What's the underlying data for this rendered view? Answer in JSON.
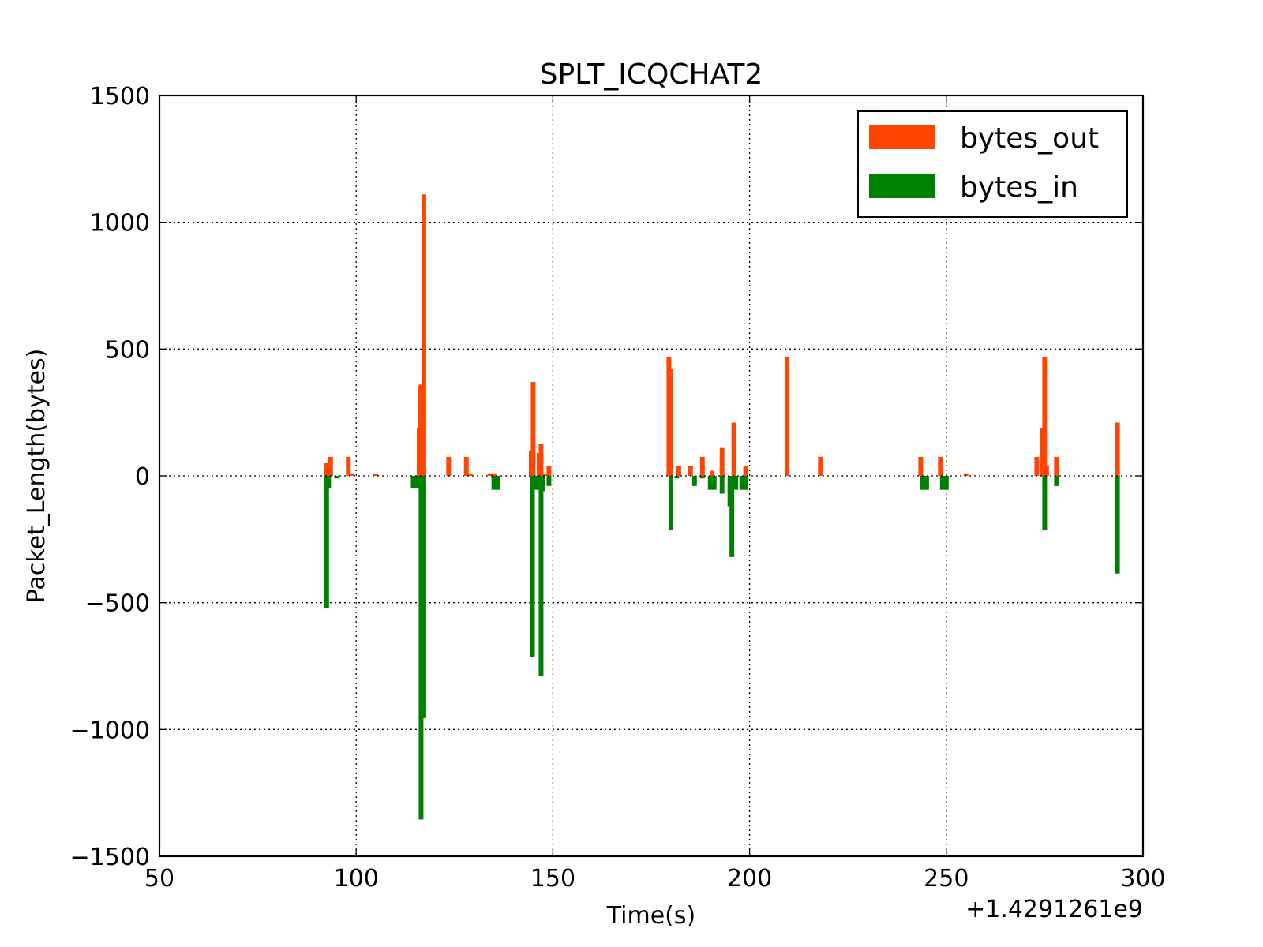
{
  "chart_data": {
    "type": "bar",
    "title": "SPLT_ICQCHAT2",
    "xlabel": "Time(s)",
    "ylabel": "Packet_Length(bytes)",
    "x_offset_label": "+1.4291261e9",
    "xlim": [
      50,
      300
    ],
    "ylim": [
      -1500,
      1500
    ],
    "x_ticks": [
      50,
      100,
      150,
      200,
      250,
      300
    ],
    "x_tick_labels": [
      "50",
      "100",
      "150",
      "200",
      "250",
      "300"
    ],
    "y_ticks": [
      1500,
      1000,
      500,
      0,
      -500,
      -1000,
      -1500
    ],
    "y_tick_labels": [
      "1500",
      "1000",
      "500",
      "0",
      "−500",
      "−1000",
      "−1500"
    ],
    "grid": true,
    "legend_position": "top-right",
    "bar_width": 1.2,
    "series": [
      {
        "name": "bytes_out",
        "color": "#ff4500",
        "x": [
          92.5,
          93.5,
          98.0,
          99.0,
          105.0,
          116.0,
          116.3,
          116.5,
          117.2,
          123.5,
          128.0,
          129.0,
          134.0,
          135.0,
          144.5,
          145.0,
          146.5,
          147.0,
          148.0,
          149.0,
          179.5,
          180.0,
          182.0,
          185.0,
          188.0,
          190.5,
          193.0,
          196.0,
          199.0,
          209.5,
          218.0,
          243.5,
          248.5,
          255.0,
          273.0,
          274.5,
          275.0,
          275.5,
          278.0,
          293.5
        ],
        "values": [
          50,
          75,
          75,
          10,
          10,
          190,
          350,
          360,
          1110,
          75,
          75,
          10,
          10,
          10,
          100,
          370,
          90,
          125,
          10,
          40,
          470,
          420,
          40,
          40,
          75,
          20,
          110,
          210,
          40,
          470,
          75,
          75,
          75,
          10,
          75,
          190,
          470,
          40,
          75,
          210
        ]
      },
      {
        "name": "bytes_in",
        "color": "#008000",
        "x": [
          92.5,
          93.0,
          95.0,
          114.5,
          115.5,
          116.5,
          117.2,
          135.0,
          136.0,
          144.8,
          145.5,
          146.5,
          147.0,
          147.5,
          149.0,
          180.0,
          181.5,
          186.0,
          188.0,
          190.0,
          191.0,
          193.0,
          195.0,
          195.5,
          196.5,
          198.0,
          199.0,
          244.0,
          245.0,
          249.0,
          250.0,
          275.0,
          278.0,
          293.5
        ],
        "values": [
          -520,
          -50,
          -10,
          -50,
          -50,
          -1355,
          -955,
          -55,
          -55,
          -715,
          -55,
          -55,
          -790,
          -60,
          -40,
          -215,
          -10,
          -40,
          -10,
          -55,
          -55,
          -70,
          -120,
          -320,
          -55,
          -55,
          -55,
          -55,
          -55,
          -55,
          -55,
          -215,
          -40,
          -385
        ]
      }
    ]
  }
}
